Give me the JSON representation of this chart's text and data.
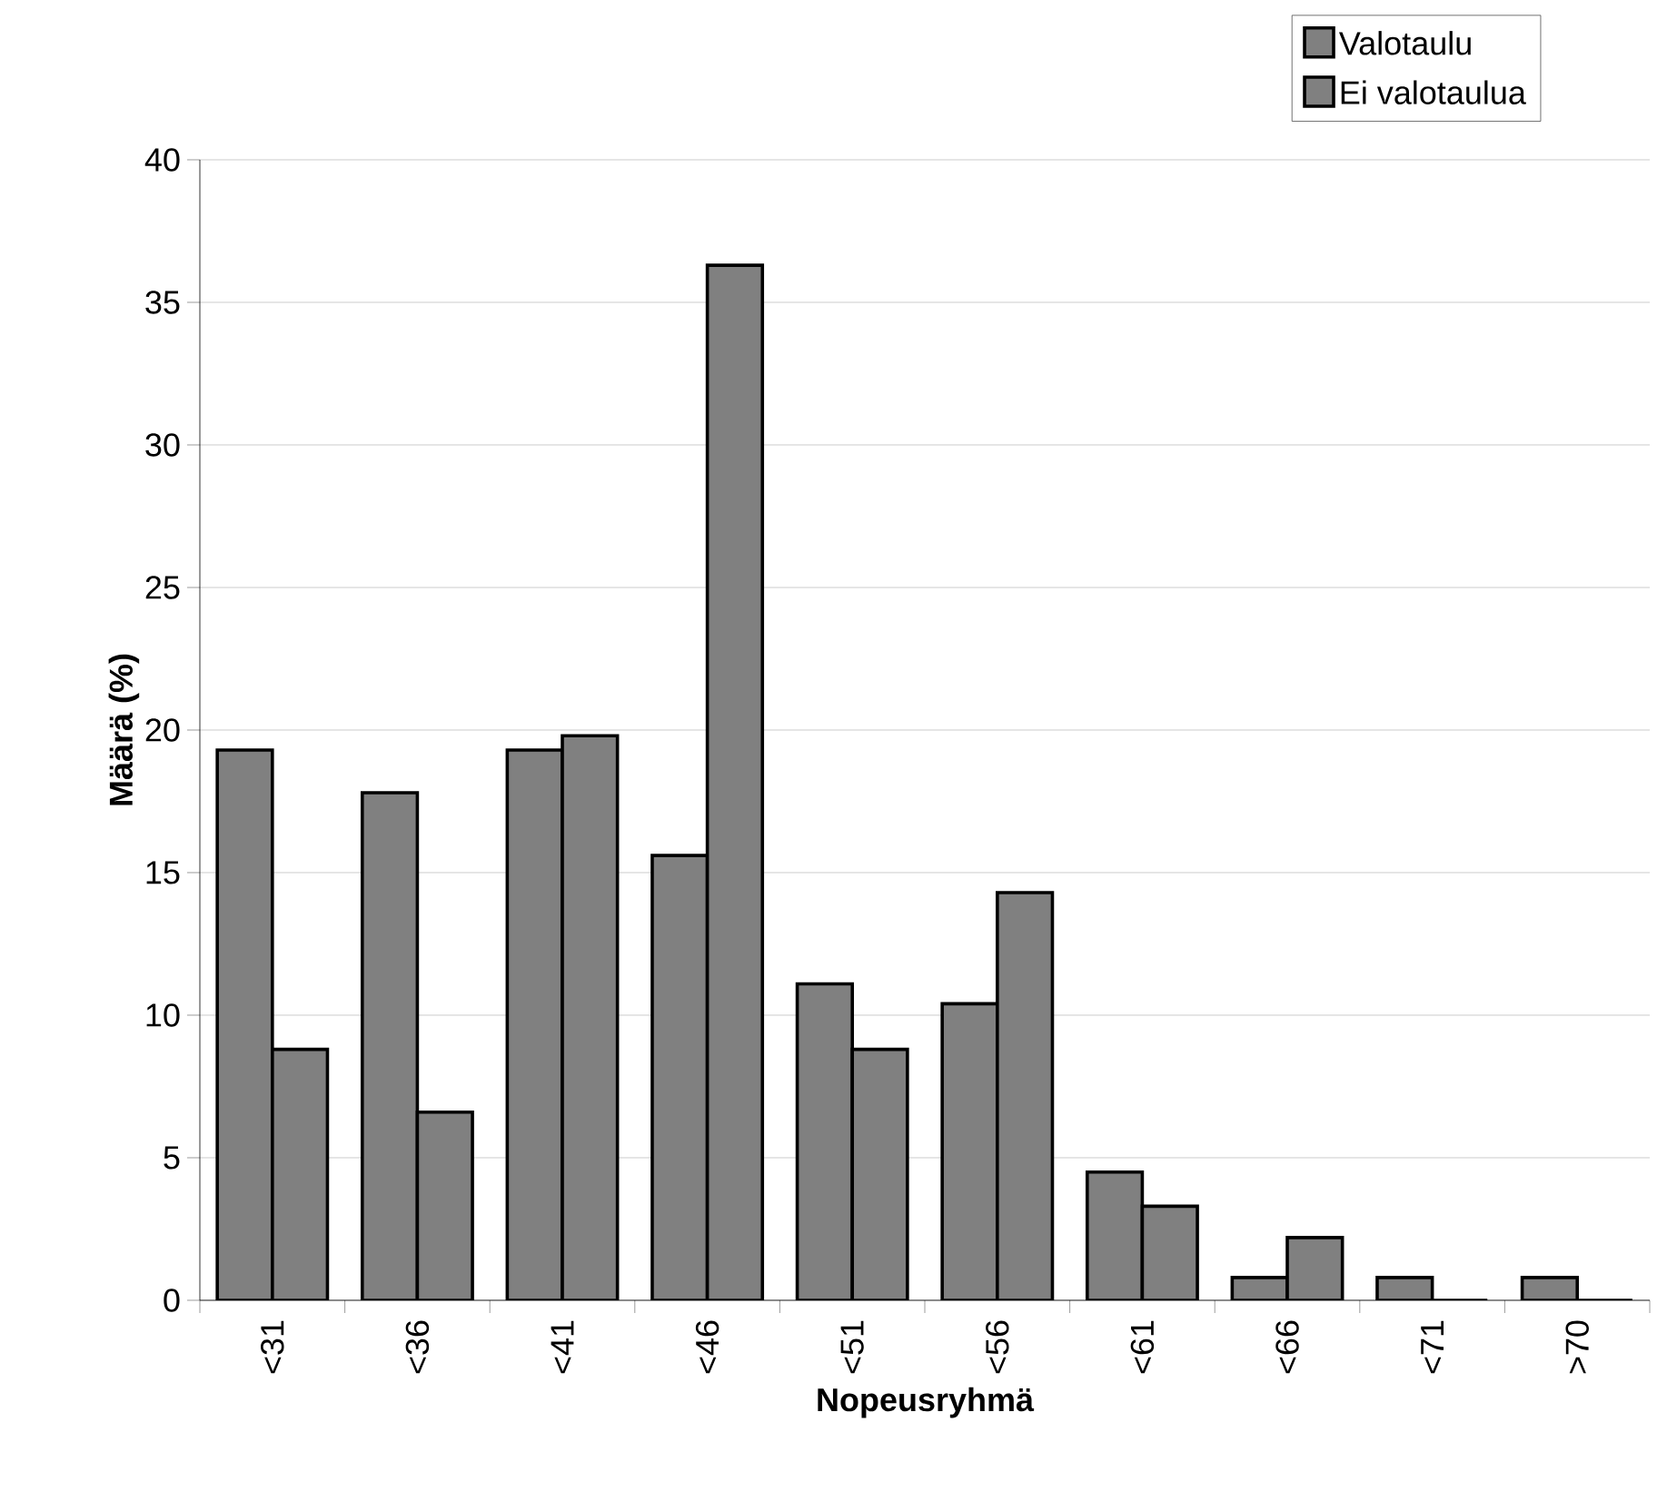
{
  "chart_data": {
    "type": "bar",
    "xlabel": "Nopeusryhmä",
    "ylabel": "Määrä (%)",
    "categories": [
      "<31",
      "<36",
      "<41",
      "<46",
      "<51",
      "<56",
      "<61",
      "<66",
      "<71",
      ">70"
    ],
    "series": [
      {
        "name": "Valotaulu",
        "color": "#808080",
        "values": [
          19.3,
          17.8,
          19.3,
          15.6,
          11.1,
          10.4,
          4.5,
          0.8,
          0.8,
          0.8
        ]
      },
      {
        "name": "Ei valotaulua",
        "color": "#808080",
        "values": [
          8.8,
          6.6,
          19.8,
          36.3,
          8.8,
          14.3,
          3.3,
          2.2,
          0,
          0
        ]
      }
    ],
    "ylim": [
      0,
      40
    ],
    "yticks": [
      0,
      5,
      10,
      15,
      20,
      25,
      30,
      35,
      40
    ],
    "grid": "y",
    "legend": "top right"
  }
}
